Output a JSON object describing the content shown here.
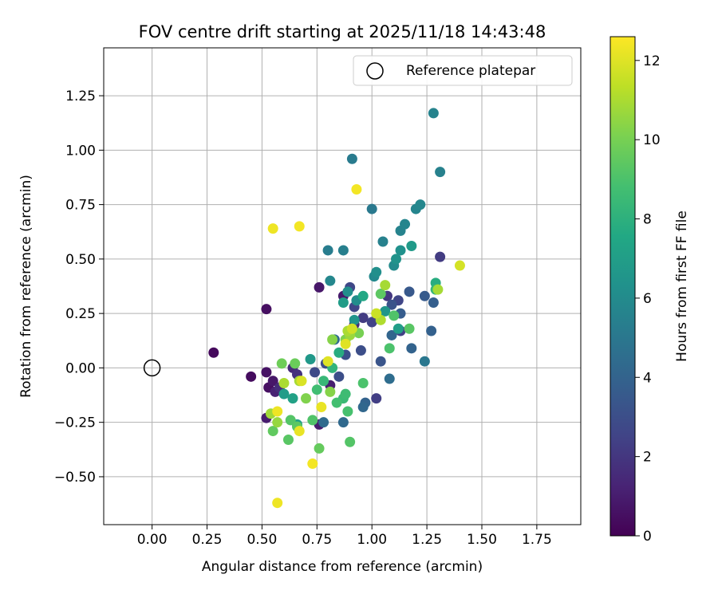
{
  "chart_data": {
    "type": "scatter",
    "title": "FOV centre drift starting at 2025/11/18 14:43:48",
    "xlabel": "Angular distance from reference (arcmin)",
    "ylabel": "Rotation from reference (arcmin)",
    "xlim": [
      -0.22,
      1.95
    ],
    "ylim": [
      -0.72,
      1.47
    ],
    "xticks": [
      0.0,
      0.25,
      0.5,
      0.75,
      1.0,
      1.25,
      1.5,
      1.75
    ],
    "xtick_labels": [
      "0.00",
      "0.25",
      "0.50",
      "0.75",
      "1.00",
      "1.25",
      "1.50",
      "1.75"
    ],
    "yticks": [
      -0.5,
      -0.25,
      0.0,
      0.25,
      0.5,
      0.75,
      1.0,
      1.25
    ],
    "ytick_labels": [
      "−0.50",
      "−0.25",
      "0.00",
      "0.25",
      "0.50",
      "0.75",
      "1.00",
      "1.25"
    ],
    "grid": true,
    "legend": {
      "placement": "top-right",
      "entries": [
        "Reference platepar"
      ]
    },
    "reference_point": {
      "x": 0.0,
      "y": 0.0,
      "label": "Reference platepar"
    },
    "colorbar": {
      "label": "Hours from first FF file",
      "min": 0,
      "max": 12.6,
      "ticks": [
        0,
        2,
        4,
        6,
        8,
        10,
        12
      ],
      "tick_labels": [
        "0",
        "2",
        "4",
        "6",
        "8",
        "10",
        "12"
      ],
      "colormap": "viridis"
    },
    "series": [
      {
        "name": "FOV centre",
        "points": [
          {
            "x": 0.28,
            "y": 0.07,
            "c": 0.3
          },
          {
            "x": 0.45,
            "y": -0.04,
            "c": 0.4
          },
          {
            "x": 0.52,
            "y": 0.27,
            "c": 0.5
          },
          {
            "x": 0.52,
            "y": -0.02,
            "c": 0.6
          },
          {
            "x": 0.53,
            "y": -0.09,
            "c": 0.5
          },
          {
            "x": 0.52,
            "y": -0.23,
            "c": 1.0
          },
          {
            "x": 0.55,
            "y": -0.06,
            "c": 0.8
          },
          {
            "x": 0.56,
            "y": -0.11,
            "c": 1.2
          },
          {
            "x": 0.58,
            "y": -0.09,
            "c": 1.6
          },
          {
            "x": 0.64,
            "y": 0.0,
            "c": 1.5
          },
          {
            "x": 0.66,
            "y": -0.03,
            "c": 1.8
          },
          {
            "x": 0.76,
            "y": -0.26,
            "c": 1.0
          },
          {
            "x": 0.76,
            "y": 0.37,
            "c": 0.8
          },
          {
            "x": 0.81,
            "y": -0.08,
            "c": 1.1
          },
          {
            "x": 0.87,
            "y": 0.33,
            "c": 0.9
          },
          {
            "x": 0.92,
            "y": 0.2,
            "c": 1.7
          },
          {
            "x": 0.96,
            "y": 0.23,
            "c": 2.2
          },
          {
            "x": 1.0,
            "y": 0.21,
            "c": 2.5
          },
          {
            "x": 1.02,
            "y": -0.14,
            "c": 2.3
          },
          {
            "x": 1.07,
            "y": 0.33,
            "c": 2.0
          },
          {
            "x": 1.12,
            "y": 0.31,
            "c": 2.6
          },
          {
            "x": 1.13,
            "y": 0.17,
            "c": 2.4
          },
          {
            "x": 1.31,
            "y": 0.51,
            "c": 2.2
          },
          {
            "x": 0.9,
            "y": 0.37,
            "c": 2.7
          },
          {
            "x": 0.92,
            "y": 0.28,
            "c": 2.6
          },
          {
            "x": 0.79,
            "y": 0.02,
            "c": 2.9
          },
          {
            "x": 0.85,
            "y": -0.04,
            "c": 3.0
          },
          {
            "x": 0.74,
            "y": -0.02,
            "c": 2.8
          },
          {
            "x": 0.88,
            "y": 0.06,
            "c": 3.1
          },
          {
            "x": 0.95,
            "y": 0.08,
            "c": 3.0
          },
          {
            "x": 1.04,
            "y": 0.03,
            "c": 3.3
          },
          {
            "x": 1.09,
            "y": 0.29,
            "c": 3.2
          },
          {
            "x": 1.17,
            "y": 0.35,
            "c": 3.5
          },
          {
            "x": 1.24,
            "y": 0.33,
            "c": 3.6
          },
          {
            "x": 1.28,
            "y": 0.3,
            "c": 3.8
          },
          {
            "x": 1.27,
            "y": 0.17,
            "c": 3.9
          },
          {
            "x": 1.13,
            "y": 0.25,
            "c": 3.7
          },
          {
            "x": 1.18,
            "y": 0.09,
            "c": 4.0
          },
          {
            "x": 1.09,
            "y": 0.15,
            "c": 4.1
          },
          {
            "x": 0.97,
            "y": -0.16,
            "c": 4.0
          },
          {
            "x": 0.96,
            "y": -0.18,
            "c": 4.2
          },
          {
            "x": 0.87,
            "y": -0.25,
            "c": 4.3
          },
          {
            "x": 0.78,
            "y": -0.25,
            "c": 4.4
          },
          {
            "x": 0.83,
            "y": 0.13,
            "c": 4.4
          },
          {
            "x": 1.08,
            "y": -0.05,
            "c": 4.5
          },
          {
            "x": 1.24,
            "y": 0.03,
            "c": 5.0
          },
          {
            "x": 1.0,
            "y": 0.73,
            "c": 5.1
          },
          {
            "x": 0.91,
            "y": 0.96,
            "c": 5.2
          },
          {
            "x": 0.8,
            "y": 0.54,
            "c": 5.3
          },
          {
            "x": 0.87,
            "y": 0.54,
            "c": 5.4
          },
          {
            "x": 1.05,
            "y": 0.58,
            "c": 5.5
          },
          {
            "x": 1.13,
            "y": 0.63,
            "c": 5.6
          },
          {
            "x": 1.15,
            "y": 0.66,
            "c": 5.7
          },
          {
            "x": 1.2,
            "y": 0.73,
            "c": 5.7
          },
          {
            "x": 1.22,
            "y": 0.75,
            "c": 5.8
          },
          {
            "x": 1.28,
            "y": 1.17,
            "c": 5.6
          },
          {
            "x": 1.31,
            "y": 0.9,
            "c": 5.5
          },
          {
            "x": 1.13,
            "y": 0.54,
            "c": 6.3
          },
          {
            "x": 1.18,
            "y": 0.56,
            "c": 6.8
          },
          {
            "x": 1.1,
            "y": 0.47,
            "c": 6.0
          },
          {
            "x": 1.11,
            "y": 0.5,
            "c": 6.4
          },
          {
            "x": 1.01,
            "y": 0.42,
            "c": 5.9
          },
          {
            "x": 1.02,
            "y": 0.44,
            "c": 6.2
          },
          {
            "x": 0.93,
            "y": 0.31,
            "c": 6.1
          },
          {
            "x": 0.81,
            "y": 0.4,
            "c": 5.8
          },
          {
            "x": 0.89,
            "y": 0.35,
            "c": 6.2
          },
          {
            "x": 0.87,
            "y": 0.3,
            "c": 6.9
          },
          {
            "x": 0.92,
            "y": 0.22,
            "c": 6.5
          },
          {
            "x": 0.72,
            "y": 0.04,
            "c": 6.7
          },
          {
            "x": 0.6,
            "y": -0.12,
            "c": 6.9
          },
          {
            "x": 0.64,
            "y": -0.14,
            "c": 7.2
          },
          {
            "x": 0.66,
            "y": -0.26,
            "c": 7.1
          },
          {
            "x": 1.06,
            "y": 0.26,
            "c": 6.6
          },
          {
            "x": 1.12,
            "y": 0.18,
            "c": 7.0
          },
          {
            "x": 1.29,
            "y": 0.39,
            "c": 7.8
          },
          {
            "x": 1.29,
            "y": 0.36,
            "c": 8.3
          },
          {
            "x": 0.96,
            "y": 0.33,
            "c": 7.5
          },
          {
            "x": 0.85,
            "y": 0.07,
            "c": 7.8
          },
          {
            "x": 0.82,
            "y": 0.0,
            "c": 8.2
          },
          {
            "x": 0.78,
            "y": -0.06,
            "c": 8.4
          },
          {
            "x": 0.75,
            "y": -0.1,
            "c": 8.7
          },
          {
            "x": 0.87,
            "y": -0.14,
            "c": 8.5
          },
          {
            "x": 0.84,
            "y": -0.16,
            "c": 8.8
          },
          {
            "x": 0.88,
            "y": -0.12,
            "c": 8.6
          },
          {
            "x": 0.96,
            "y": -0.07,
            "c": 9.0
          },
          {
            "x": 0.89,
            "y": -0.2,
            "c": 8.9
          },
          {
            "x": 0.73,
            "y": -0.24,
            "c": 9.1
          },
          {
            "x": 0.63,
            "y": -0.24,
            "c": 9.2
          },
          {
            "x": 0.66,
            "y": -0.27,
            "c": 9.4
          },
          {
            "x": 0.55,
            "y": -0.29,
            "c": 9.5
          },
          {
            "x": 0.62,
            "y": -0.33,
            "c": 9.3
          },
          {
            "x": 0.76,
            "y": -0.37,
            "c": 9.6
          },
          {
            "x": 0.9,
            "y": -0.34,
            "c": 9.2
          },
          {
            "x": 0.59,
            "y": 0.02,
            "c": 9.8
          },
          {
            "x": 0.65,
            "y": 0.02,
            "c": 9.7
          },
          {
            "x": 1.08,
            "y": 0.09,
            "c": 9.0
          },
          {
            "x": 1.1,
            "y": 0.24,
            "c": 9.1
          },
          {
            "x": 1.17,
            "y": 0.18,
            "c": 9.3
          },
          {
            "x": 1.04,
            "y": 0.34,
            "c": 9.4
          },
          {
            "x": 0.94,
            "y": 0.16,
            "c": 10.0
          },
          {
            "x": 0.88,
            "y": 0.13,
            "c": 10.2
          },
          {
            "x": 0.82,
            "y": 0.13,
            "c": 10.3
          },
          {
            "x": 0.81,
            "y": -0.11,
            "c": 10.3
          },
          {
            "x": 0.7,
            "y": -0.14,
            "c": 10.2
          },
          {
            "x": 0.57,
            "y": -0.25,
            "c": 10.6
          },
          {
            "x": 0.54,
            "y": -0.21,
            "c": 10.8
          },
          {
            "x": 0.67,
            "y": -0.06,
            "c": 10.9
          },
          {
            "x": 0.6,
            "y": -0.07,
            "c": 11.0
          },
          {
            "x": 0.9,
            "y": 0.15,
            "c": 10.7
          },
          {
            "x": 0.89,
            "y": 0.17,
            "c": 11.0
          },
          {
            "x": 1.06,
            "y": 0.38,
            "c": 10.9
          },
          {
            "x": 1.04,
            "y": 0.22,
            "c": 11.1
          },
          {
            "x": 1.3,
            "y": 0.36,
            "c": 10.9
          },
          {
            "x": 1.4,
            "y": 0.47,
            "c": 11.8
          },
          {
            "x": 0.93,
            "y": 0.82,
            "c": 12.4
          },
          {
            "x": 0.55,
            "y": 0.64,
            "c": 12.3
          },
          {
            "x": 0.67,
            "y": 0.65,
            "c": 12.4
          },
          {
            "x": 0.57,
            "y": -0.62,
            "c": 12.3
          },
          {
            "x": 0.73,
            "y": -0.44,
            "c": 12.4
          },
          {
            "x": 0.57,
            "y": -0.2,
            "c": 12.3
          },
          {
            "x": 0.67,
            "y": -0.29,
            "c": 12.2
          },
          {
            "x": 0.77,
            "y": -0.18,
            "c": 12.2
          },
          {
            "x": 0.8,
            "y": 0.03,
            "c": 12.0
          },
          {
            "x": 0.68,
            "y": -0.06,
            "c": 11.9
          },
          {
            "x": 0.88,
            "y": 0.11,
            "c": 12.0
          },
          {
            "x": 0.91,
            "y": 0.18,
            "c": 11.7
          },
          {
            "x": 1.02,
            "y": 0.25,
            "c": 11.6
          }
        ]
      }
    ]
  }
}
